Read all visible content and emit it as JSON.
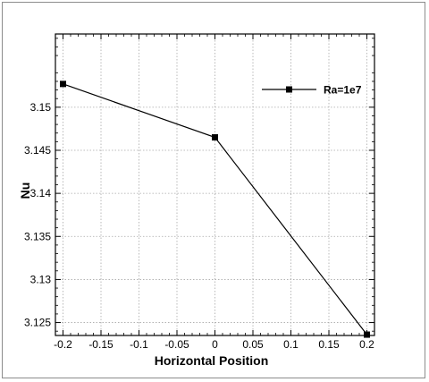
{
  "chart_data": {
    "type": "line",
    "title": "",
    "xlabel": "Horizontal Position",
    "ylabel": "Nu",
    "xlim": [
      -0.21,
      0.21
    ],
    "ylim": [
      3.1235,
      3.1585
    ],
    "xticks": [
      -0.2,
      -0.15,
      -0.1,
      -0.05,
      0,
      0.05,
      0.1,
      0.15,
      0.2
    ],
    "xtick_labels": [
      "-0.2",
      "-0.15",
      "-0.1",
      "-0.05",
      "0",
      "0.05",
      "0.1",
      "0.15",
      "0.2"
    ],
    "yticks": [
      3.125,
      3.13,
      3.135,
      3.14,
      3.145,
      3.15
    ],
    "ytick_labels": [
      "3.125",
      "3.13",
      "3.135",
      "3.14",
      "3.145",
      "3.15"
    ],
    "grid": true,
    "legend_position": "top-right",
    "series": [
      {
        "name": "Ra=1e7",
        "x": [
          -0.2,
          0,
          0.2
        ],
        "y": [
          3.1527,
          3.1465,
          3.1236
        ],
        "color": "#000000",
        "marker": "square"
      }
    ]
  }
}
